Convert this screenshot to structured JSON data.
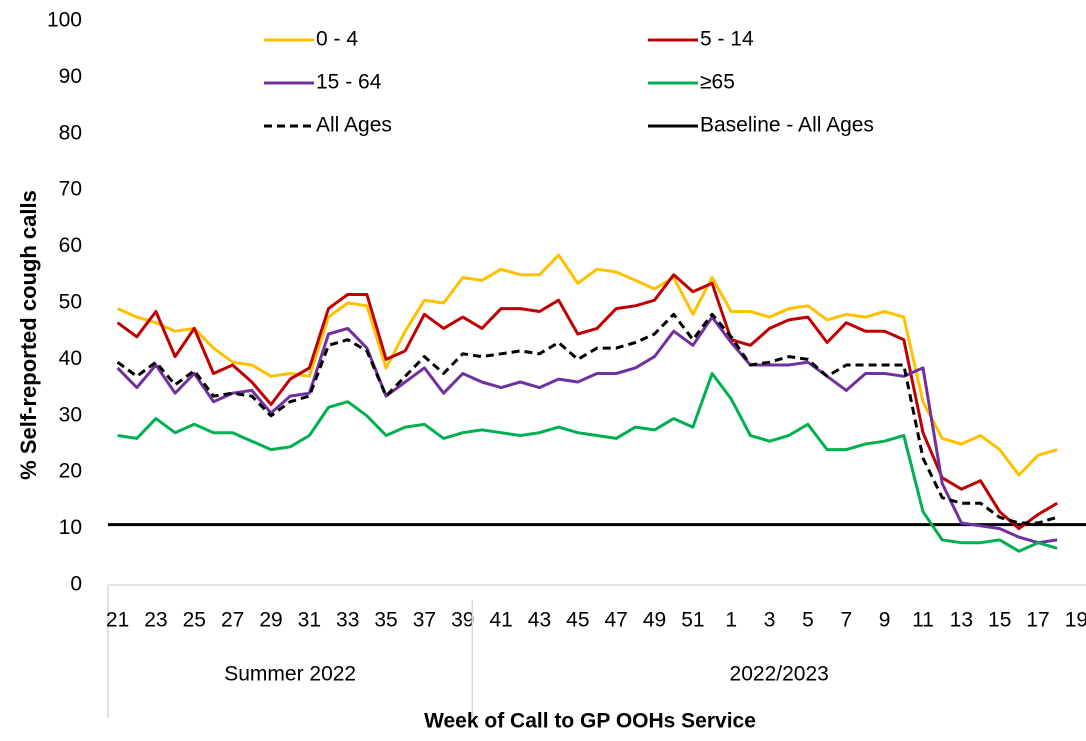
{
  "chart_data": {
    "type": "line",
    "y_axis_label": "% Self-reported cough calls",
    "x_axis_label": "Week of Call to GP OOHs Service",
    "categories": [
      "21",
      null,
      "23",
      null,
      "25",
      null,
      "27",
      null,
      "29",
      null,
      "31",
      null,
      "33",
      null,
      "35",
      null,
      "37",
      null,
      "39",
      null,
      "41",
      null,
      "43",
      null,
      "45",
      null,
      "47",
      null,
      "49",
      null,
      "51",
      null,
      "1",
      null,
      "3",
      null,
      "5",
      null,
      "7",
      null,
      "9",
      null,
      "11",
      null,
      "13",
      null,
      "15",
      null,
      "17",
      null,
      "19"
    ],
    "groups": [
      {
        "label": "Summer 2022",
        "span": 19
      },
      {
        "label": "2022/2023",
        "span": 32
      }
    ],
    "series": [
      {
        "name": "0 - 4",
        "color": "#FFC000",
        "values": [
          49,
          47.5,
          46.5,
          45,
          45.5,
          42,
          39.5,
          39,
          37,
          37.5,
          37,
          47.5,
          50,
          49.5,
          38.5,
          45,
          50.5,
          50,
          54.5,
          54,
          56,
          55,
          55,
          58.5,
          53.5,
          56,
          55.5,
          54,
          52.5,
          54.5,
          48,
          54.5,
          48.5,
          48.5,
          47.5,
          49,
          49.5,
          47,
          48,
          47.5,
          48.5,
          47.5,
          32.5,
          26,
          25,
          26.5,
          24,
          19.5,
          23,
          24,
          null
        ]
      },
      {
        "name": "5 - 14",
        "color": "#C00000",
        "values": [
          46.5,
          44,
          48.5,
          40.5,
          45.5,
          37.5,
          39,
          36,
          32,
          36.5,
          38.5,
          49,
          51.5,
          51.5,
          40,
          41.5,
          48,
          45.5,
          47.5,
          45.5,
          49,
          49,
          48.5,
          50.5,
          44.5,
          45.5,
          49,
          49.5,
          50.5,
          55,
          52,
          53.5,
          43.5,
          42.5,
          45.5,
          47,
          47.5,
          43,
          46.5,
          45,
          45,
          43.5,
          27,
          19,
          17,
          18.5,
          13,
          10,
          12.5,
          14.5,
          null
        ]
      },
      {
        "name": "15 - 64",
        "color": "#7030A0",
        "values": [
          38.5,
          35,
          39,
          34,
          37.5,
          32.5,
          34,
          34.5,
          30.5,
          33.5,
          34,
          44.5,
          45.5,
          42,
          33.5,
          36,
          38.5,
          34,
          37.5,
          36,
          35,
          36,
          35,
          36.5,
          36,
          37.5,
          37.5,
          38.5,
          40.5,
          45,
          42.5,
          47.5,
          43,
          39,
          39,
          39,
          39.5,
          37,
          34.5,
          37.5,
          37.5,
          37,
          38.5,
          18,
          11,
          10.5,
          10,
          8.5,
          7.5,
          8,
          null
        ]
      },
      {
        "name": "≥65",
        "color": "#00B050",
        "values": [
          26.5,
          26,
          29.5,
          27,
          28.5,
          27,
          27,
          25.5,
          24,
          24.5,
          26.5,
          31.5,
          32.5,
          30,
          26.5,
          28,
          28.5,
          26,
          27,
          27.5,
          27,
          26.5,
          27,
          28,
          27,
          26.5,
          26,
          28,
          27.5,
          29.5,
          28,
          37.5,
          33,
          26.5,
          25.5,
          26.5,
          28.5,
          24,
          24,
          25,
          25.5,
          26.5,
          13,
          8,
          7.5,
          7.5,
          8,
          6,
          7.5,
          6.5,
          null
        ]
      },
      {
        "name": "All Ages",
        "color": "#000000",
        "dashed": true,
        "values": [
          39.5,
          37,
          39.5,
          35.5,
          38,
          33.5,
          34,
          33.5,
          30,
          32.5,
          33.5,
          42.5,
          43.5,
          41.5,
          33.5,
          37,
          40.5,
          37.5,
          41,
          40.5,
          41,
          41.5,
          41,
          43,
          40,
          42,
          42,
          43,
          44.5,
          48,
          43.5,
          48,
          44,
          39,
          39.5,
          40.5,
          40,
          37,
          39,
          39,
          39,
          39,
          22.5,
          15.5,
          14.5,
          14.5,
          12,
          11,
          11,
          12,
          null
        ]
      }
    ],
    "baseline": {
      "name": "Baseline - All Ages",
      "color": "#000000",
      "value": 10.7
    },
    "ylim": [
      0,
      100
    ],
    "yticks": [
      0,
      10,
      20,
      30,
      40,
      50,
      60,
      70,
      80,
      90,
      100
    ]
  }
}
